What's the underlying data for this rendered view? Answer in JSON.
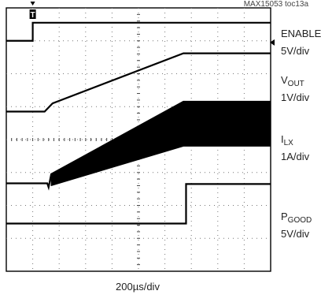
{
  "reference_id": "MAX15053 toc13a",
  "chart_data": {
    "type": "line",
    "title": "",
    "xlabel": "200µs/div",
    "ylabel": "",
    "grid": true,
    "trigger_marker": "T",
    "divisions": {
      "x": 10,
      "y": 8
    },
    "xlim_divisions": [
      0,
      10
    ],
    "channels": [
      {
        "name_main": "ENABLE",
        "name_sub": "",
        "scale": "5V/div",
        "points": [
          [
            0,
            7.0
          ],
          [
            1.0,
            7.0
          ],
          [
            1.0,
            7.55
          ],
          [
            10,
            7.55
          ]
        ]
      },
      {
        "name_main": "V",
        "name_sub": "OUT",
        "scale": "1V/div",
        "points": [
          [
            0,
            4.85
          ],
          [
            1.45,
            4.85
          ],
          [
            1.75,
            5.1
          ],
          [
            6.7,
            6.62
          ],
          [
            10,
            6.62
          ]
        ]
      },
      {
        "name_main": "I",
        "name_sub": "LX",
        "scale": "1A/div",
        "points": [
          [
            0,
            2.67
          ],
          [
            1.55,
            2.67
          ],
          [
            1.6,
            2.55
          ],
          [
            1.7,
            2.95
          ],
          [
            6.7,
            5.15
          ],
          [
            10,
            5.15
          ]
        ],
        "envelope_lower": [
          [
            1.7,
            2.6
          ],
          [
            6.7,
            3.8
          ],
          [
            10,
            3.8
          ]
        ]
      },
      {
        "name_main": "P",
        "name_sub": "GOOD",
        "scale": "5V/div",
        "points": [
          [
            0,
            1.45
          ],
          [
            6.8,
            1.45
          ],
          [
            6.8,
            2.65
          ],
          [
            10,
            2.65
          ]
        ]
      }
    ]
  },
  "colors": {
    "trace": "#000000",
    "grid_dot": "#777777",
    "frame": "#000000"
  }
}
